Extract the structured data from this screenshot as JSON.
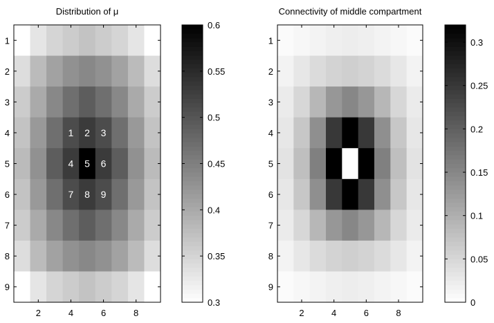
{
  "chart_data": [
    {
      "type": "heatmap",
      "title": "Distribution of μ",
      "x_ticks": [
        2,
        4,
        6,
        8
      ],
      "y_ticks": [
        1,
        2,
        3,
        4,
        5,
        6,
        7,
        8,
        9
      ],
      "xlim": [
        0.5,
        9.5
      ],
      "ylim": [
        0.5,
        9.5
      ],
      "clim": [
        0.3,
        0.6
      ],
      "colormap": "gray (white = low, black = high)",
      "colorbar_ticks": [
        "0.3",
        "0.35",
        "0.4",
        "0.45",
        "0.5",
        "0.55",
        "0.6"
      ],
      "values": [
        [
          0.3,
          0.33,
          0.35,
          0.36,
          0.37,
          0.36,
          0.35,
          0.33,
          0.3
        ],
        [
          0.34,
          0.38,
          0.41,
          0.43,
          0.44,
          0.43,
          0.41,
          0.38,
          0.34
        ],
        [
          0.36,
          0.4,
          0.44,
          0.47,
          0.49,
          0.47,
          0.44,
          0.4,
          0.36
        ],
        [
          0.37,
          0.42,
          0.47,
          0.51,
          0.53,
          0.51,
          0.47,
          0.42,
          0.37
        ],
        [
          0.38,
          0.43,
          0.49,
          0.53,
          0.6,
          0.53,
          0.49,
          0.43,
          0.38
        ],
        [
          0.37,
          0.42,
          0.47,
          0.51,
          0.53,
          0.51,
          0.47,
          0.42,
          0.37
        ],
        [
          0.36,
          0.4,
          0.44,
          0.47,
          0.49,
          0.47,
          0.44,
          0.4,
          0.36
        ],
        [
          0.34,
          0.38,
          0.41,
          0.43,
          0.44,
          0.43,
          0.41,
          0.38,
          0.34
        ],
        [
          0.3,
          0.33,
          0.35,
          0.36,
          0.37,
          0.36,
          0.35,
          0.33,
          0.3
        ]
      ],
      "annotations": [
        {
          "label": "1",
          "x": 4,
          "y": 4
        },
        {
          "label": "2",
          "x": 5,
          "y": 4
        },
        {
          "label": "3",
          "x": 6,
          "y": 4
        },
        {
          "label": "4",
          "x": 4,
          "y": 5
        },
        {
          "label": "5",
          "x": 5,
          "y": 5
        },
        {
          "label": "6",
          "x": 6,
          "y": 5
        },
        {
          "label": "7",
          "x": 4,
          "y": 6
        },
        {
          "label": "8",
          "x": 5,
          "y": 6
        },
        {
          "label": "9",
          "x": 6,
          "y": 6
        }
      ]
    },
    {
      "type": "heatmap",
      "title": "Connectivity of middle compartment",
      "x_ticks": [
        2,
        4,
        6,
        8
      ],
      "y_ticks": [
        1,
        2,
        3,
        4,
        5,
        6,
        7,
        8,
        9
      ],
      "xlim": [
        0.5,
        9.5
      ],
      "ylim": [
        0.5,
        9.5
      ],
      "clim": [
        0,
        0.32
      ],
      "colormap": "gray (white = low, black = high)",
      "colorbar_ticks": [
        "0",
        "0.05",
        "0.1",
        "0.15",
        "0.2",
        "0.25",
        "0.3"
      ],
      "values": [
        [
          0.005,
          0.01,
          0.015,
          0.02,
          0.022,
          0.02,
          0.015,
          0.01,
          0.005
        ],
        [
          0.015,
          0.03,
          0.045,
          0.055,
          0.06,
          0.055,
          0.045,
          0.03,
          0.015
        ],
        [
          0.025,
          0.05,
          0.09,
          0.13,
          0.15,
          0.13,
          0.09,
          0.05,
          0.025
        ],
        [
          0.03,
          0.07,
          0.14,
          0.25,
          0.32,
          0.25,
          0.14,
          0.07,
          0.03
        ],
        [
          0.035,
          0.08,
          0.16,
          0.32,
          0.0,
          0.32,
          0.16,
          0.08,
          0.035
        ],
        [
          0.03,
          0.07,
          0.14,
          0.25,
          0.32,
          0.25,
          0.14,
          0.07,
          0.03
        ],
        [
          0.025,
          0.05,
          0.09,
          0.13,
          0.15,
          0.13,
          0.09,
          0.05,
          0.025
        ],
        [
          0.015,
          0.03,
          0.045,
          0.055,
          0.06,
          0.055,
          0.045,
          0.03,
          0.015
        ],
        [
          0.005,
          0.01,
          0.015,
          0.02,
          0.022,
          0.02,
          0.015,
          0.01,
          0.005
        ]
      ],
      "annotations": []
    }
  ]
}
